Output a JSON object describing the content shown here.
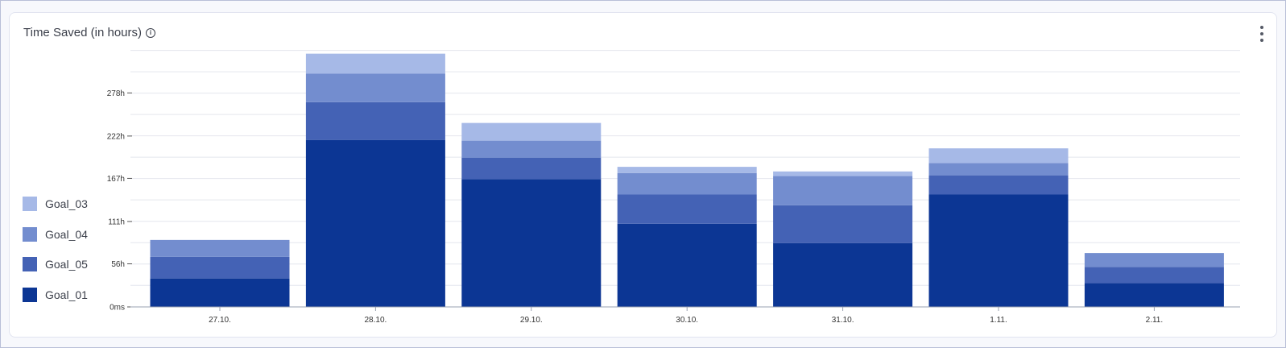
{
  "card": {
    "title": "Time Saved (in hours)"
  },
  "chart_data": {
    "type": "bar",
    "stacked": true,
    "title": "Time Saved (in hours)",
    "categories": [
      "27.10.",
      "28.10.",
      "29.10.",
      "30.10.",
      "31.10.",
      "1.11.",
      "2.11."
    ],
    "y_ticks": [
      {
        "value": 0,
        "label": "0ms"
      },
      {
        "value": 56,
        "label": "56h"
      },
      {
        "value": 111,
        "label": "111h"
      },
      {
        "value": 167,
        "label": "167h"
      },
      {
        "value": 222,
        "label": "222h"
      },
      {
        "value": 278,
        "label": "278h"
      }
    ],
    "ylim": [
      0,
      339
    ],
    "grid": true,
    "legend_position": "left-bottom",
    "series": [
      {
        "name": "Goal_01",
        "color": "#0c3694",
        "values": [
          37,
          217,
          166,
          108,
          83,
          146,
          31
        ]
      },
      {
        "name": "Goal_05",
        "color": "#4462b5",
        "values": [
          28,
          49,
          28,
          38,
          49,
          25,
          21
        ]
      },
      {
        "name": "Goal_04",
        "color": "#738dcf",
        "values": [
          22,
          37,
          22,
          28,
          38,
          16,
          18
        ]
      },
      {
        "name": "Goal_03",
        "color": "#a6b9e7",
        "values": [
          0,
          26,
          23,
          8,
          6,
          19,
          0
        ]
      }
    ]
  }
}
